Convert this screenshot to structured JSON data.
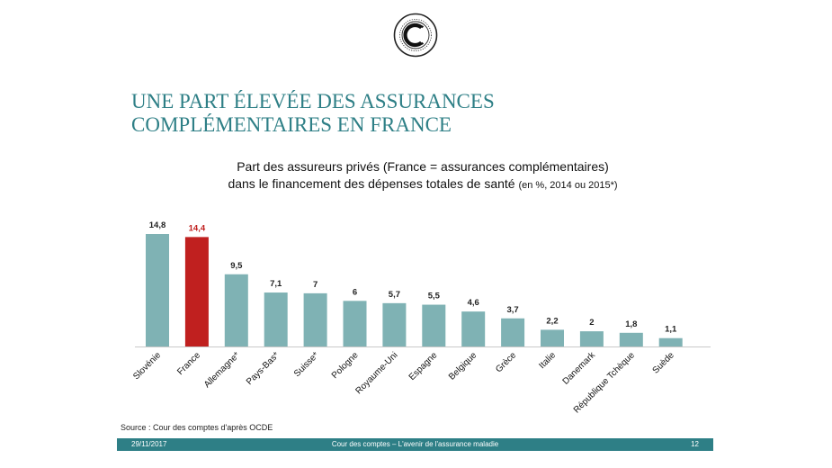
{
  "slide": {
    "title_line1": "UNE PART ÉLEVÉE DES ASSURANCES",
    "title_line2": "COMPLÉMENTAIRES EN FRANCE"
  },
  "chart_data": {
    "type": "bar",
    "title_line1": "Part des assureurs privés (France = assurances complémentaires)",
    "title_line2": "dans le financement des dépenses totales de santé",
    "subtitle": "(en %, 2014 ou 2015*)",
    "categories": [
      "Slovénie",
      "France",
      "Allemagne*",
      "Pays-Bas*",
      "Suisse*",
      "Pologne",
      "Royaume-Uni",
      "Espagne",
      "Belgique",
      "Grèce",
      "Italie",
      "Danemark",
      "République Tchèque",
      "Suède"
    ],
    "values": [
      14.8,
      14.4,
      9.5,
      7.1,
      7,
      6,
      5.7,
      5.5,
      4.6,
      3.7,
      2.2,
      2,
      1.8,
      1.1
    ],
    "value_labels": [
      "14,8",
      "14,4",
      "9,5",
      "7,1",
      "7",
      "6",
      "5,7",
      "5,5",
      "4,6",
      "3,7",
      "2,2",
      "2",
      "1,8",
      "1,1"
    ],
    "highlight_index": 1,
    "colors": {
      "bar": "#7fb2b4",
      "highlight": "#c0201f",
      "label": "#222222",
      "axis": "#c8c8c8"
    },
    "ylim": [
      0,
      15
    ],
    "grid": false,
    "legend": "none"
  },
  "source": "Source : Cour des comptes d'après OCDE",
  "footer": {
    "date": "29/11/2017",
    "center": "Cour des comptes – L'avenir de l'assurance maladie",
    "page": "12"
  },
  "logo": {
    "icon": "cour-des-comptes-seal-icon"
  }
}
